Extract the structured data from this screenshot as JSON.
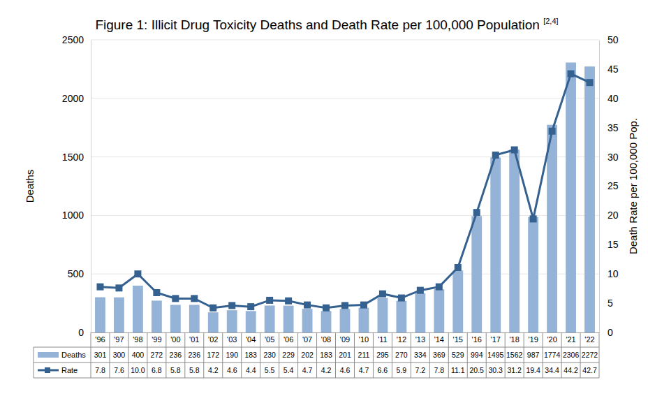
{
  "chart_data": {
    "type": "bar",
    "title": "Figure 1: Illicit Drug Toxicity Deaths and Death Rate per 100,000 Population",
    "annotations": [
      "[2,4]"
    ],
    "ylabel": "Deaths",
    "y2label": "Death Rate per 100,000 Pop.",
    "categories": [
      "'96",
      "'97",
      "'98",
      "'99",
      "'00",
      "'01",
      "'02",
      "'03",
      "'04",
      "'05",
      "'06",
      "'07",
      "'08",
      "'09",
      "'10",
      "'11",
      "'12",
      "'13",
      "'14",
      "'15",
      "'16",
      "'17",
      "'18",
      "'19",
      "'20",
      "'21",
      "'22"
    ],
    "series": [
      {
        "name": "Deaths",
        "type": "bar",
        "color": "#95b3d7",
        "values": [
          301,
          300,
          400,
          272,
          236,
          236,
          172,
          190,
          183,
          230,
          229,
          202,
          183,
          201,
          211,
          295,
          270,
          334,
          369,
          529,
          994,
          1495,
          1562,
          987,
          1774,
          2306,
          2272
        ]
      },
      {
        "name": "Rate",
        "type": "line",
        "axis": "y2",
        "color": "#34618f",
        "marker": "square",
        "values": [
          7.8,
          7.6,
          10.0,
          6.8,
          5.8,
          5.8,
          4.2,
          4.6,
          4.4,
          5.5,
          5.4,
          4.7,
          4.2,
          4.6,
          4.7,
          6.6,
          5.9,
          7.2,
          7.8,
          11.1,
          20.5,
          30.3,
          31.2,
          19.4,
          34.4,
          44.2,
          42.7
        ],
        "value_labels": [
          "7.8",
          "7.6",
          "10.0",
          "6.8",
          "5.8",
          "5.8",
          "4.2",
          "4.6",
          "4.4",
          "5.5",
          "5.4",
          "4.7",
          "4.2",
          "4.6",
          "4.7",
          "6.6",
          "5.9",
          "7.2",
          "7.8",
          "11.1",
          "20.5",
          "30.3",
          "31.2",
          "19.4",
          "34.4",
          "44.2",
          "42.7"
        ]
      }
    ],
    "ylim": [
      0,
      2500
    ],
    "yticks": [
      0,
      500,
      1000,
      1500,
      2000,
      2500
    ],
    "y2lim": [
      0,
      50
    ],
    "y2ticks": [
      0,
      5,
      10,
      15,
      20,
      25,
      30,
      35,
      40,
      45,
      50
    ],
    "grid": true
  }
}
